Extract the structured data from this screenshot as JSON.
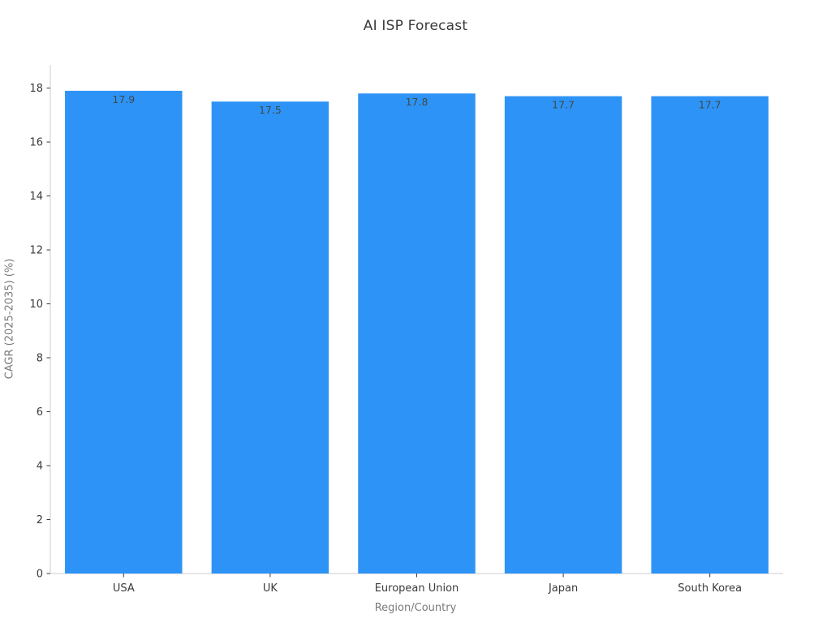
{
  "chart_data": {
    "type": "bar",
    "title": "AI ISP Forecast",
    "xlabel": "Region/Country",
    "ylabel": "CAGR (2025-2035) (%)",
    "categories": [
      "USA",
      "UK",
      "European Union",
      "Japan",
      "South Korea"
    ],
    "values": [
      17.9,
      17.5,
      17.8,
      17.7,
      17.7
    ],
    "value_labels": [
      "17.9",
      "17.5",
      "17.8",
      "17.7",
      "17.7"
    ],
    "yticks": [
      0,
      2,
      4,
      6,
      8,
      10,
      12,
      14,
      16,
      18
    ],
    "ylim": [
      0,
      18.86
    ],
    "grid": false,
    "legend": null,
    "colors": {
      "bar": "#2e93f6",
      "spine": "#cccccc",
      "tick_mark": "#3b3b3b",
      "tick_label": "#3b3b3b",
      "value_label": "#3f4a4a",
      "axis_label": "#7a7a7a",
      "title": "#3a3a3a",
      "background": "#ffffff"
    }
  }
}
